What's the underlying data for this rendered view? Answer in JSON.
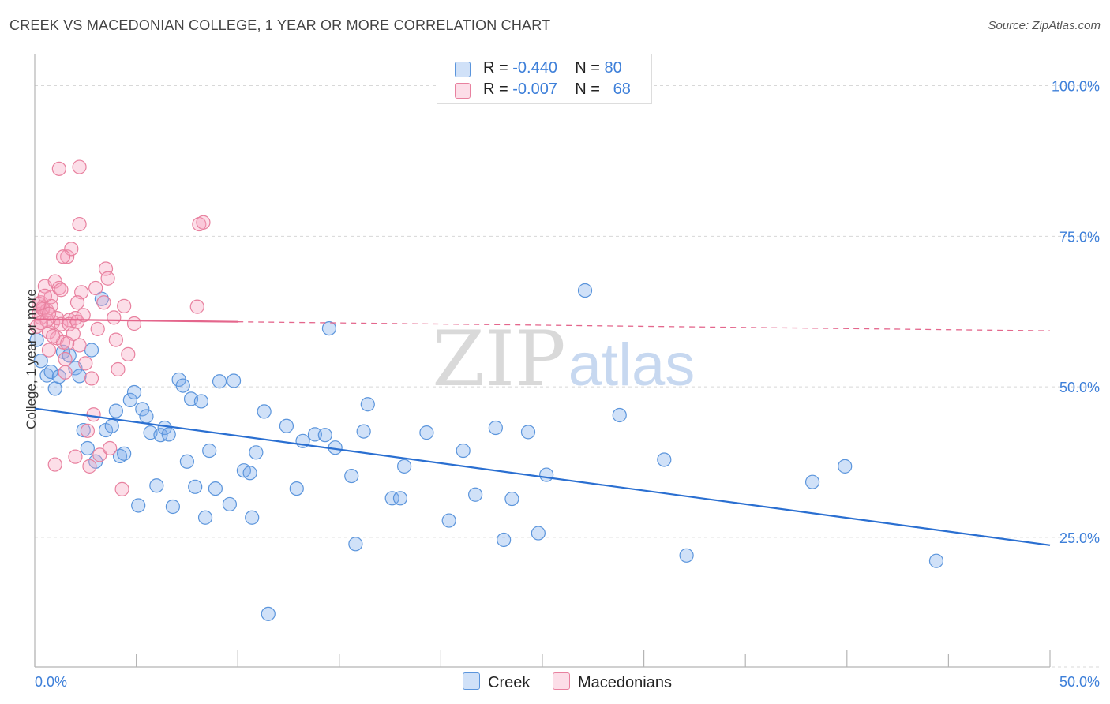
{
  "header": {
    "title": "CREEK VS MACEDONIAN COLLEGE, 1 YEAR OR MORE CORRELATION CHART",
    "source": "Source: ZipAtlas.com"
  },
  "legend": {
    "r_label": "R = ",
    "n_label": "N = ",
    "rows": [
      {
        "r": "-0.440",
        "n": "80"
      },
      {
        "r": "-0.007",
        "n": "68"
      }
    ]
  },
  "bottom_legend": [
    "Creek",
    "Macedonians"
  ],
  "watermark": {
    "zip": "ZIP",
    "atlas": "atlas"
  },
  "colors": {
    "creek_fill": "rgba(120,170,235,0.35)",
    "creek_stroke": "#5b95dc",
    "creek_line": "#2a6fd1",
    "mac_fill": "rgba(245,160,190,0.35)",
    "mac_stroke": "#e8819f",
    "mac_line": "#e4668c",
    "tick_label": "#3d7fd9",
    "grid": "#d8d8d8"
  },
  "chart_data": {
    "type": "scatter",
    "title": "CREEK VS MACEDONIAN COLLEGE, 1 YEAR OR MORE CORRELATION CHART",
    "xlabel": "",
    "ylabel": "College, 1 year or more",
    "xlim": [
      0,
      50
    ],
    "ylim": [
      3.5,
      104
    ],
    "x_tick_labels": [
      "0.0%",
      "50.0%"
    ],
    "y_ticks": [
      25,
      50,
      75,
      100
    ],
    "y_tick_labels": [
      "25.0%",
      "50.0%",
      "75.0%",
      "100.0%"
    ],
    "grid": "horizontal dashed",
    "legend_position": "top-center",
    "series": [
      {
        "name": "Creek",
        "points": [
          [
            0.3,
            54.3
          ],
          [
            0.6,
            51.9
          ],
          [
            0.8,
            52.5
          ],
          [
            1.0,
            49.7
          ],
          [
            1.2,
            51.7
          ],
          [
            1.4,
            55.8
          ],
          [
            1.7,
            55.2
          ],
          [
            2.0,
            53.1
          ],
          [
            2.2,
            51.8
          ],
          [
            2.4,
            42.8
          ],
          [
            2.6,
            39.8
          ],
          [
            2.8,
            56.1
          ],
          [
            3.0,
            37.6
          ],
          [
            3.3,
            64.6
          ],
          [
            3.5,
            42.8
          ],
          [
            3.8,
            43.5
          ],
          [
            4.0,
            46.0
          ],
          [
            4.2,
            38.5
          ],
          [
            4.4,
            38.9
          ],
          [
            4.7,
            47.8
          ],
          [
            4.9,
            49.1
          ],
          [
            5.1,
            30.3
          ],
          [
            5.3,
            46.3
          ],
          [
            5.5,
            45.1
          ],
          [
            5.7,
            42.4
          ],
          [
            6.0,
            33.6
          ],
          [
            6.2,
            42.0
          ],
          [
            6.4,
            43.2
          ],
          [
            6.6,
            42.1
          ],
          [
            6.8,
            30.1
          ],
          [
            7.1,
            51.2
          ],
          [
            7.3,
            50.2
          ],
          [
            7.5,
            37.6
          ],
          [
            7.7,
            48.0
          ],
          [
            7.9,
            33.4
          ],
          [
            8.2,
            47.6
          ],
          [
            8.4,
            28.3
          ],
          [
            8.6,
            39.4
          ],
          [
            8.9,
            33.1
          ],
          [
            9.1,
            50.9
          ],
          [
            9.6,
            30.5
          ],
          [
            9.8,
            51.0
          ],
          [
            10.3,
            36.1
          ],
          [
            10.6,
            35.7
          ],
          [
            10.7,
            28.3
          ],
          [
            10.9,
            39.1
          ],
          [
            11.3,
            45.9
          ],
          [
            11.5,
            12.3
          ],
          [
            12.4,
            43.5
          ],
          [
            12.9,
            33.1
          ],
          [
            13.2,
            41.0
          ],
          [
            13.8,
            42.1
          ],
          [
            14.3,
            42.0
          ],
          [
            14.8,
            39.9
          ],
          [
            14.5,
            59.7
          ],
          [
            15.6,
            35.2
          ],
          [
            15.8,
            23.9
          ],
          [
            16.2,
            42.6
          ],
          [
            16.4,
            47.1
          ],
          [
            17.6,
            31.5
          ],
          [
            18.0,
            31.5
          ],
          [
            18.2,
            36.8
          ],
          [
            19.3,
            42.4
          ],
          [
            20.4,
            27.8
          ],
          [
            21.1,
            39.4
          ],
          [
            21.7,
            32.1
          ],
          [
            22.7,
            43.2
          ],
          [
            23.1,
            24.6
          ],
          [
            23.5,
            31.4
          ],
          [
            24.3,
            42.5
          ],
          [
            24.8,
            25.7
          ],
          [
            25.2,
            35.4
          ],
          [
            27.1,
            66.0
          ],
          [
            28.8,
            45.3
          ],
          [
            31.0,
            37.9
          ],
          [
            32.1,
            22.0
          ],
          [
            38.3,
            34.2
          ],
          [
            39.9,
            36.8
          ],
          [
            44.4,
            21.1
          ],
          [
            0.1,
            57.8
          ]
        ]
      },
      {
        "name": "Macedonians",
        "points": [
          [
            0.1,
            60.0
          ],
          [
            0.2,
            62.1
          ],
          [
            0.3,
            64.0
          ],
          [
            0.3,
            61.5
          ],
          [
            0.4,
            63.2
          ],
          [
            0.5,
            66.7
          ],
          [
            0.6,
            62.7
          ],
          [
            0.7,
            59.1
          ],
          [
            0.7,
            56.1
          ],
          [
            0.8,
            64.9
          ],
          [
            0.9,
            60.7
          ],
          [
            1.0,
            67.5
          ],
          [
            1.1,
            58.1
          ],
          [
            1.1,
            61.4
          ],
          [
            1.2,
            66.4
          ],
          [
            1.3,
            66.1
          ],
          [
            1.3,
            60.4
          ],
          [
            1.4,
            57.4
          ],
          [
            1.5,
            52.4
          ],
          [
            1.5,
            54.6
          ],
          [
            1.6,
            71.6
          ],
          [
            1.7,
            61.1
          ],
          [
            1.7,
            60.4
          ],
          [
            1.8,
            72.9
          ],
          [
            1.9,
            58.8
          ],
          [
            2.0,
            61.4
          ],
          [
            2.1,
            60.8
          ],
          [
            2.2,
            56.9
          ],
          [
            2.3,
            65.7
          ],
          [
            2.4,
            61.9
          ],
          [
            2.5,
            53.9
          ],
          [
            2.6,
            42.7
          ],
          [
            2.7,
            36.8
          ],
          [
            2.8,
            51.4
          ],
          [
            2.9,
            45.4
          ],
          [
            3.0,
            66.4
          ],
          [
            3.1,
            59.6
          ],
          [
            3.2,
            38.7
          ],
          [
            3.4,
            64.0
          ],
          [
            3.5,
            69.6
          ],
          [
            3.6,
            68.0
          ],
          [
            3.7,
            39.8
          ],
          [
            3.9,
            61.5
          ],
          [
            4.0,
            57.8
          ],
          [
            4.1,
            52.9
          ],
          [
            4.3,
            33.0
          ],
          [
            4.4,
            63.4
          ],
          [
            4.6,
            55.4
          ],
          [
            4.9,
            60.5
          ],
          [
            0.4,
            62.9
          ],
          [
            0.8,
            63.4
          ],
          [
            1.2,
            86.2
          ],
          [
            2.2,
            86.5
          ],
          [
            2.2,
            77.0
          ],
          [
            8.1,
            77.0
          ],
          [
            8.3,
            77.3
          ],
          [
            8.0,
            63.3
          ],
          [
            1.4,
            71.6
          ],
          [
            0.6,
            61.0
          ],
          [
            2.1,
            64.0
          ],
          [
            0.2,
            63.8
          ],
          [
            0.5,
            65.1
          ],
          [
            0.9,
            58.4
          ],
          [
            1.6,
            57.2
          ],
          [
            0.3,
            60.6
          ],
          [
            1.0,
            37.1
          ],
          [
            2.0,
            38.4
          ],
          [
            0.7,
            62.1
          ]
        ]
      }
    ],
    "trend_lines": [
      {
        "series": "Creek",
        "x": [
          0,
          50
        ],
        "y": [
          46.4,
          23.7
        ],
        "style": "solid"
      },
      {
        "series": "Macedonians",
        "x": [
          0,
          10
        ],
        "y": [
          61.2,
          60.8
        ],
        "style": "solid"
      },
      {
        "series": "Macedonians",
        "x": [
          10,
          50
        ],
        "y": [
          60.8,
          59.3
        ],
        "style": "dashed"
      }
    ]
  }
}
